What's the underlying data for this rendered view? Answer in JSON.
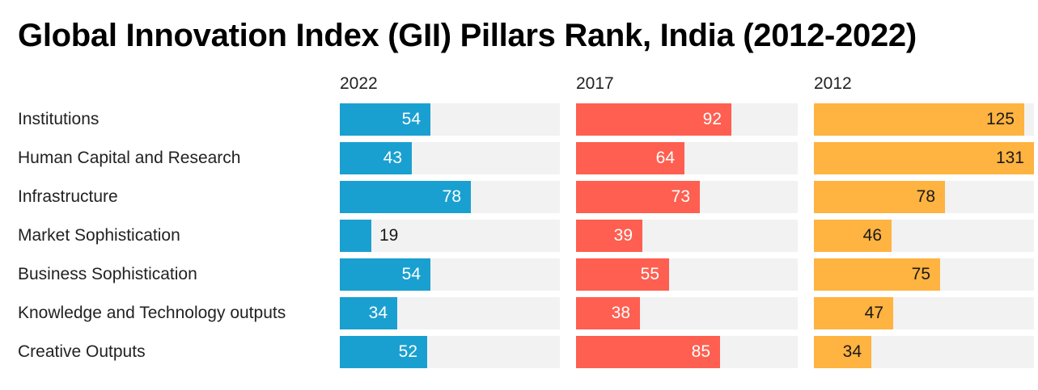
{
  "chart_data": {
    "type": "bar",
    "title": "Global Innovation Index (GII) Pillars Rank, India (2012-2022)",
    "categories": [
      "Institutions",
      "Human Capital and Research",
      "Infrastructure",
      "Market Sophistication",
      "Business Sophistication",
      "Knowledge and Technology outputs",
      "Creative Outputs"
    ],
    "xlim": [
      0,
      131
    ],
    "series": [
      {
        "name": "2022",
        "color": "#1aa0d0",
        "values": [
          54,
          43,
          78,
          19,
          54,
          34,
          52
        ]
      },
      {
        "name": "2017",
        "color": "#fe5f50",
        "values": [
          92,
          64,
          73,
          39,
          55,
          38,
          85
        ]
      },
      {
        "name": "2012",
        "color": "#ffb340",
        "values": [
          125,
          131,
          78,
          46,
          75,
          47,
          34
        ]
      }
    ]
  }
}
